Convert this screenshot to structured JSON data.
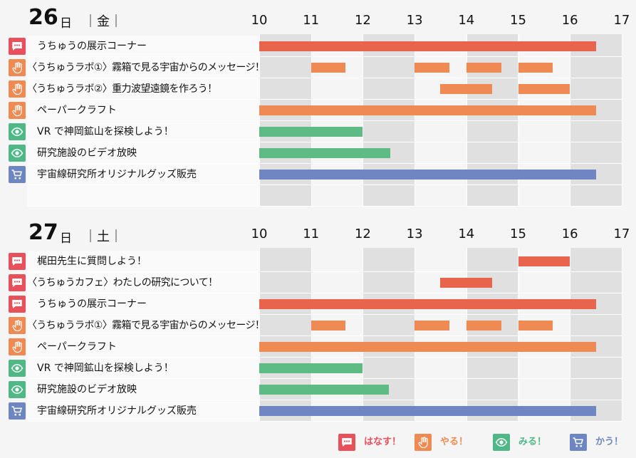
{
  "colors": {
    "talk": "#e8505b",
    "do": "#ee8a52",
    "see": "#4fb886",
    "buy": "#6d86c2",
    "bar_talk": "#e8644c",
    "bar_do": "#ef8a55",
    "bar_see": "#5fbb84",
    "bar_buy": "#6f86c3"
  },
  "hours": [
    "10",
    "11",
    "12",
    "13",
    "14",
    "15",
    "16",
    "17"
  ],
  "days": [
    {
      "day": "26",
      "suffix": "日",
      "weekday": "｜金｜",
      "events": [
        {
          "label": "うちゅうの展示コーナー",
          "category": "talk",
          "icon": "speech-bubble-icon",
          "sessions": [
            [
              10,
              16.5
            ]
          ]
        },
        {
          "label": "〈うちゅうラボ①〉霧箱で見る宇宙からのメッセージ！",
          "category": "do",
          "icon": "hand-icon",
          "sessions": [
            [
              11,
              11.67
            ],
            [
              13,
              13.67
            ],
            [
              14,
              14.67
            ],
            [
              15,
              15.67
            ]
          ]
        },
        {
          "label": "〈うちゅうラボ②〉重力波望遠鏡を作ろう！",
          "category": "do",
          "icon": "hand-icon",
          "sessions": [
            [
              13.5,
              14.5
            ],
            [
              15,
              16
            ]
          ]
        },
        {
          "label": "ペーパークラフト",
          "category": "do",
          "icon": "hand-icon",
          "sessions": [
            [
              10,
              16.5
            ]
          ]
        },
        {
          "label": "VR で神岡鉱山を探検しよう！",
          "category": "see",
          "icon": "eye-icon",
          "sessions": [
            [
              10,
              12
            ]
          ]
        },
        {
          "label": "研究施設のビデオ放映",
          "category": "see",
          "icon": "eye-icon",
          "sessions": [
            [
              10,
              12.53
            ]
          ]
        },
        {
          "label": "宇宙線研究所オリジナルグッズ販売",
          "category": "buy",
          "icon": "cart-icon",
          "sessions": [
            [
              10,
              16.5
            ]
          ]
        }
      ]
    },
    {
      "day": "27",
      "suffix": "日",
      "weekday": "｜土｜",
      "events": [
        {
          "label": "梶田先生に質問しよう！",
          "category": "talk",
          "icon": "speech-bubble-icon",
          "sessions": [
            [
              15,
              16
            ]
          ]
        },
        {
          "label": "〈うちゅうカフェ〉わたしの研究について！",
          "category": "talk",
          "icon": "speech-bubble-icon",
          "sessions": [
            [
              13.5,
              14.5
            ]
          ]
        },
        {
          "label": "うちゅうの展示コーナー",
          "category": "talk",
          "icon": "speech-bubble-icon",
          "sessions": [
            [
              10,
              16.5
            ]
          ]
        },
        {
          "label": "〈うちゅうラボ①〉霧箱で見る宇宙からのメッセージ！",
          "category": "do",
          "icon": "hand-icon",
          "sessions": [
            [
              11,
              11.67
            ],
            [
              13,
              13.67
            ],
            [
              14,
              14.67
            ],
            [
              15,
              15.67
            ]
          ]
        },
        {
          "label": "ペーパークラフト",
          "category": "do",
          "icon": "hand-icon",
          "sessions": [
            [
              10,
              16.5
            ]
          ]
        },
        {
          "label": "VR で神岡鉱山を探検しよう！",
          "category": "see",
          "icon": "eye-icon",
          "sessions": [
            [
              10,
              12
            ]
          ]
        },
        {
          "label": "研究施設のビデオ放映",
          "category": "see",
          "icon": "eye-icon",
          "sessions": [
            [
              10,
              12.5
            ]
          ]
        },
        {
          "label": "宇宙線研究所オリジナルグッズ販売",
          "category": "buy",
          "icon": "cart-icon",
          "sessions": [
            [
              10,
              16.5
            ]
          ]
        }
      ]
    }
  ],
  "legend": [
    {
      "category": "talk",
      "icon": "speech-bubble-icon",
      "label": "はなす！"
    },
    {
      "category": "do",
      "icon": "hand-icon",
      "label": "やる！"
    },
    {
      "category": "see",
      "icon": "eye-icon",
      "label": "みる！"
    },
    {
      "category": "buy",
      "icon": "cart-icon",
      "label": "かう！"
    }
  ]
}
